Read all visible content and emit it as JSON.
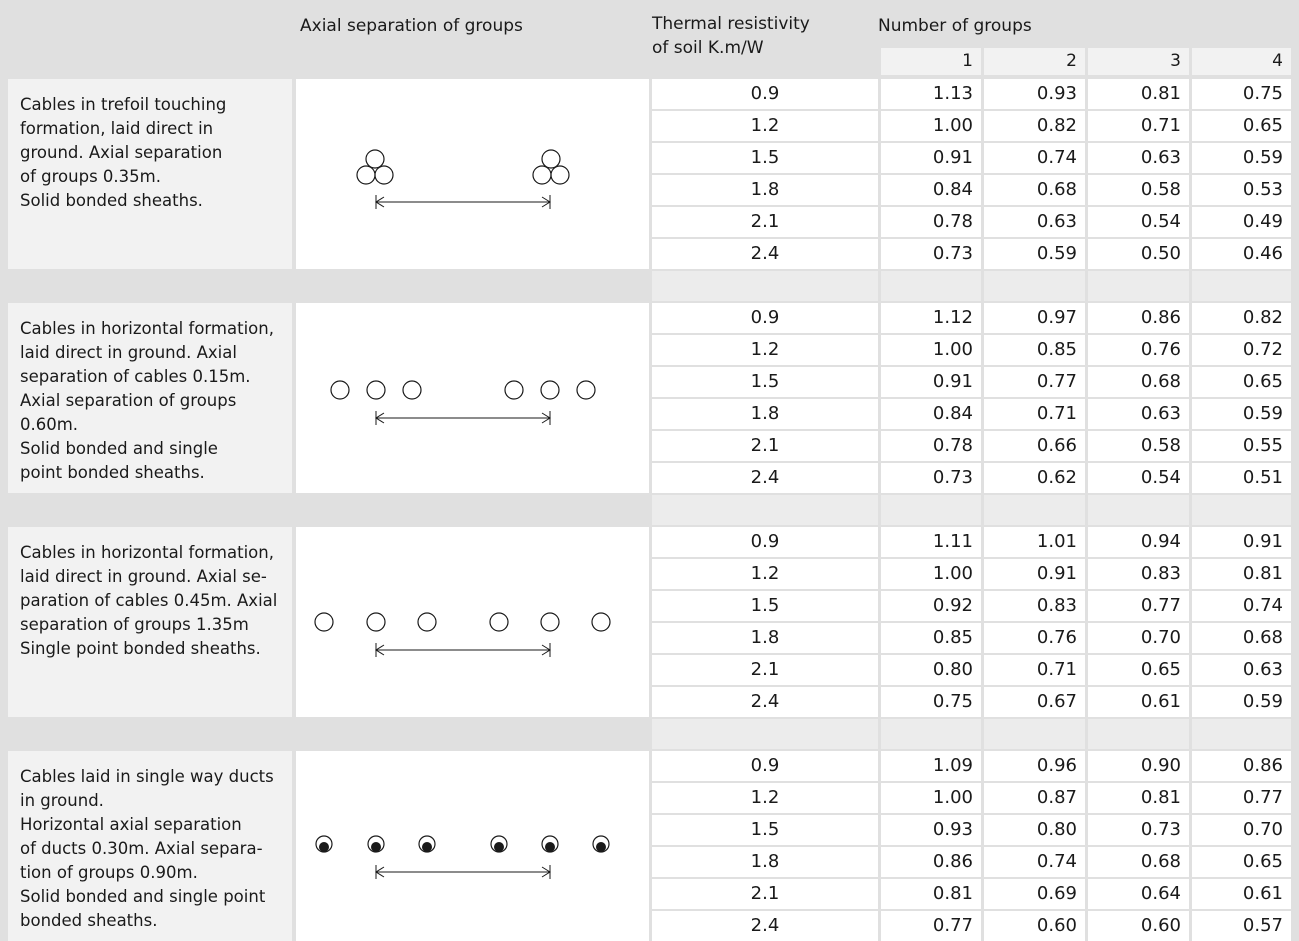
{
  "header": {
    "axial_separation": "Axial separation of groups",
    "thermal_resistivity": "Thermal resistivity\nof soil K.m/W",
    "number_of_groups": "Number of groups",
    "group_columns": [
      "1",
      "2",
      "3",
      "4"
    ]
  },
  "sections": [
    {
      "description": "Cables in trefoil touching\nformation, laid direct in\nground. Axial separation\nof groups 0.35m.\nSolid bonded sheaths.",
      "diagram_icon": "trefoil-cable-groups-icon",
      "rows": [
        {
          "rho": "0.9",
          "values": [
            "1.13",
            "0.93",
            "0.81",
            "0.75"
          ]
        },
        {
          "rho": "1.2",
          "values": [
            "1.00",
            "0.82",
            "0.71",
            "0.65"
          ]
        },
        {
          "rho": "1.5",
          "values": [
            "0.91",
            "0.74",
            "0.63",
            "0.59"
          ]
        },
        {
          "rho": "1.8",
          "values": [
            "0.84",
            "0.68",
            "0.58",
            "0.53"
          ]
        },
        {
          "rho": "2.1",
          "values": [
            "0.78",
            "0.63",
            "0.54",
            "0.49"
          ]
        },
        {
          "rho": "2.4",
          "values": [
            "0.73",
            "0.59",
            "0.50",
            "0.46"
          ]
        }
      ]
    },
    {
      "description": "Cables in horizontal formation,\nlaid direct in ground. Axial\nseparation of cables 0.15m.\nAxial separation of groups\n0.60m.\nSolid bonded and single\npoint bonded sheaths.",
      "diagram_icon": "horizontal-close-cable-groups-icon",
      "rows": [
        {
          "rho": "0.9",
          "values": [
            "1.12",
            "0.97",
            "0.86",
            "0.82"
          ]
        },
        {
          "rho": "1.2",
          "values": [
            "1.00",
            "0.85",
            "0.76",
            "0.72"
          ]
        },
        {
          "rho": "1.5",
          "values": [
            "0.91",
            "0.77",
            "0.68",
            "0.65"
          ]
        },
        {
          "rho": "1.8",
          "values": [
            "0.84",
            "0.71",
            "0.63",
            "0.59"
          ]
        },
        {
          "rho": "2.1",
          "values": [
            "0.78",
            "0.66",
            "0.58",
            "0.55"
          ]
        },
        {
          "rho": "2.4",
          "values": [
            "0.73",
            "0.62",
            "0.54",
            "0.51"
          ]
        }
      ]
    },
    {
      "description": "Cables in horizontal formation,\nlaid direct in ground. Axial se-\nparation of cables 0.45m. Axial\nseparation of groups 1.35m\nSingle point bonded sheaths.",
      "diagram_icon": "horizontal-wide-cable-groups-icon",
      "rows": [
        {
          "rho": "0.9",
          "values": [
            "1.11",
            "1.01",
            "0.94",
            "0.91"
          ]
        },
        {
          "rho": "1.2",
          "values": [
            "1.00",
            "0.91",
            "0.83",
            "0.81"
          ]
        },
        {
          "rho": "1.5",
          "values": [
            "0.92",
            "0.83",
            "0.77",
            "0.74"
          ]
        },
        {
          "rho": "1.8",
          "values": [
            "0.85",
            "0.76",
            "0.70",
            "0.68"
          ]
        },
        {
          "rho": "2.1",
          "values": [
            "0.80",
            "0.71",
            "0.65",
            "0.63"
          ]
        },
        {
          "rho": "2.4",
          "values": [
            "0.75",
            "0.67",
            "0.61",
            "0.59"
          ]
        }
      ]
    },
    {
      "description": "Cables laid in single way ducts\nin ground.\nHorizontal axial separation\nof ducts 0.30m. Axial separa-\ntion of groups 0.90m.\nSolid bonded and single point\nbonded sheaths.",
      "diagram_icon": "ducted-cable-groups-icon",
      "rows": [
        {
          "rho": "0.9",
          "values": [
            "1.09",
            "0.96",
            "0.90",
            "0.86"
          ]
        },
        {
          "rho": "1.2",
          "values": [
            "1.00",
            "0.87",
            "0.81",
            "0.77"
          ]
        },
        {
          "rho": "1.5",
          "values": [
            "0.93",
            "0.80",
            "0.73",
            "0.70"
          ]
        },
        {
          "rho": "1.8",
          "values": [
            "0.86",
            "0.74",
            "0.68",
            "0.65"
          ]
        },
        {
          "rho": "2.1",
          "values": [
            "0.81",
            "0.69",
            "0.64",
            "0.61"
          ]
        },
        {
          "rho": "2.4",
          "values": [
            "0.77",
            "0.60",
            "0.60",
            "0.57"
          ]
        }
      ]
    }
  ]
}
